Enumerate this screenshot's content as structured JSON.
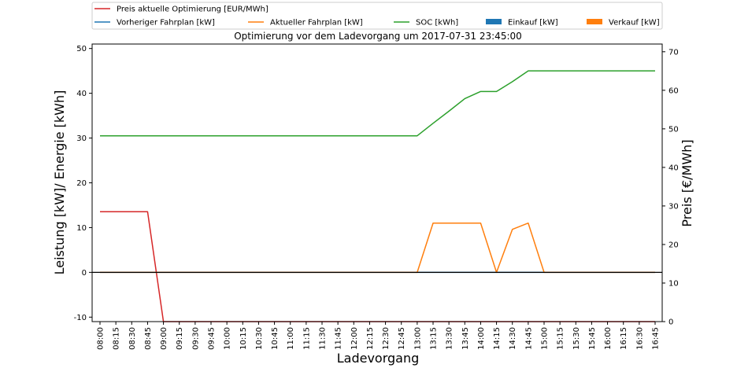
{
  "chart_data": {
    "type": "line",
    "title": "Optimierung vor dem Ladevorgang um 2017-07-31 23:45:00",
    "xlabel": "Ladevorgang",
    "ylabel": "Leistung [kW]/ Energie [kWh]",
    "ylabel_right": "Preis [€/MWh]",
    "ylim": [
      -11,
      51
    ],
    "ylim_right": [
      0,
      72
    ],
    "yticks": [
      -10,
      0,
      10,
      20,
      30,
      40,
      50
    ],
    "yticks_right": [
      0,
      10,
      20,
      30,
      40,
      50,
      60,
      70
    ],
    "legend_position": "top",
    "categories": [
      "08:00",
      "08:15",
      "08:30",
      "08:45",
      "09:00",
      "09:15",
      "09:30",
      "09:45",
      "10:00",
      "10:15",
      "10:30",
      "10:45",
      "11:00",
      "11:15",
      "11:30",
      "11:45",
      "12:00",
      "12:15",
      "12:30",
      "12:45",
      "13:00",
      "13:15",
      "13:30",
      "13:45",
      "14:00",
      "14:15",
      "14:30",
      "14:45",
      "15:00",
      "15:15",
      "15:30",
      "15:45",
      "16:00",
      "16:15",
      "16:30",
      "16:45"
    ],
    "series": [
      {
        "name": "Preis aktuelle Optimierung [EUR/MWh]",
        "type": "line",
        "axis": "right",
        "color": "#d62728",
        "values": [
          28.5,
          28.5,
          28.5,
          28.5,
          0,
          0,
          0,
          0,
          0,
          0,
          0,
          0,
          0,
          0,
          0,
          0,
          0,
          0,
          0,
          0,
          0,
          0,
          0,
          0,
          0,
          0,
          0,
          0,
          0,
          0,
          0,
          0,
          0,
          0,
          0,
          0
        ]
      },
      {
        "name": "Vorheriger Fahrplan [kW]",
        "type": "line",
        "axis": "left",
        "color": "#1f77b4",
        "values": [
          0,
          0,
          0,
          0,
          0,
          0,
          0,
          0,
          0,
          0,
          0,
          0,
          0,
          0,
          0,
          0,
          0,
          0,
          0,
          0,
          0,
          0,
          0,
          0,
          0,
          0,
          0,
          0,
          0,
          0,
          0,
          0,
          0,
          0,
          0,
          0
        ]
      },
      {
        "name": "Aktueller Fahrplan [kW]",
        "type": "line",
        "axis": "left",
        "color": "#ff7f0e",
        "values": [
          0,
          0,
          0,
          0,
          0,
          0,
          0,
          0,
          0,
          0,
          0,
          0,
          0,
          0,
          0,
          0,
          0,
          0,
          0,
          0,
          0,
          11,
          11,
          11,
          11,
          0,
          9.6,
          11,
          0,
          0,
          0,
          0,
          0,
          0,
          0,
          0
        ]
      },
      {
        "name": "SOC [kWh]",
        "type": "line",
        "axis": "left",
        "color": "#2ca02c",
        "values": [
          30.5,
          30.5,
          30.5,
          30.5,
          30.5,
          30.5,
          30.5,
          30.5,
          30.5,
          30.5,
          30.5,
          30.5,
          30.5,
          30.5,
          30.5,
          30.5,
          30.5,
          30.5,
          30.5,
          30.5,
          30.5,
          33.3,
          36,
          38.8,
          40.4,
          40.4,
          42.6,
          45,
          45,
          45,
          45,
          45,
          45,
          45,
          45,
          45
        ]
      },
      {
        "name": "Einkauf [kW]",
        "type": "bar",
        "axis": "left",
        "color": "#1f77b4",
        "values": [
          0,
          0,
          0,
          0,
          0,
          0,
          0,
          0,
          0,
          0,
          0,
          0,
          0,
          0,
          0,
          0,
          0,
          0,
          0,
          0,
          0,
          0,
          0,
          0,
          0,
          0,
          0,
          0,
          0,
          0,
          0,
          0,
          0,
          0,
          0,
          0
        ]
      },
      {
        "name": "Verkauf [kW]",
        "type": "bar",
        "axis": "left",
        "color": "#ff7f0e",
        "values": [
          0,
          0,
          0,
          0,
          0,
          0,
          0,
          0,
          0,
          0,
          0,
          0,
          0,
          0,
          0,
          0,
          0,
          0,
          0,
          0,
          0,
          0,
          0,
          0,
          0,
          0,
          0,
          0,
          0,
          0,
          0,
          0,
          0,
          0,
          0,
          0
        ]
      }
    ]
  }
}
